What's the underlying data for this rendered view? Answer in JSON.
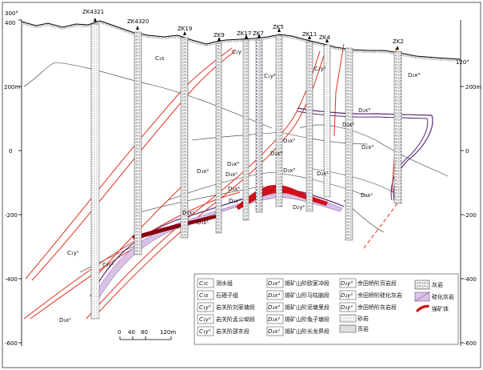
{
  "figure": {
    "left_angle": "300°",
    "right_angle": "120°",
    "elevation_ticks": [
      "400",
      "200m",
      "0",
      "-200",
      "-400",
      "-600"
    ],
    "scale_bar": {
      "ticks": [
        "0",
        "40",
        "80",
        "120m"
      ]
    }
  },
  "boreholes": [
    "ZK4321",
    "ZK4320",
    "ZK19",
    "ZK9",
    "ZK17",
    "ZK7",
    "ZK5",
    "ZK11",
    "ZK4",
    "ZK2"
  ],
  "section_labels": [
    {
      "text": "C₁s"
    },
    {
      "text": "C₁y"
    },
    {
      "text": "C₁y²"
    },
    {
      "text": "C₁y¹"
    },
    {
      "text": "D₃x⁴"
    },
    {
      "text": "D₃x³"
    },
    {
      "text": "D₃x²"
    },
    {
      "text": "D₃x¹"
    },
    {
      "text": "D₂x⁴"
    },
    {
      "text": "D₂x³"
    },
    {
      "text": "D₂x²"
    },
    {
      "text": "D₂x¹"
    },
    {
      "text": "D₃x⁴"
    },
    {
      "text": "D₃x³"
    },
    {
      "text": "D₃x²"
    },
    {
      "text": "D₃x¹"
    },
    {
      "text": "D₃x⁴"
    },
    {
      "text": "D₂x¹"
    },
    {
      "text": "C₁y¹"
    },
    {
      "text": "C₁y²"
    },
    {
      "text": "D₃x²"
    },
    {
      "text": "D₃x¹"
    },
    {
      "text": "D₂y²"
    },
    {
      "text": "D₃x¹"
    }
  ],
  "legend": {
    "col1": [
      {
        "sym": "C₁c",
        "label": "测水组"
      },
      {
        "sym": "C₁s",
        "label": "石磴子组"
      },
      {
        "sym": "C₁y³",
        "label": "岩关阶刘家塘段"
      },
      {
        "sym": "C₁y²",
        "label": "岩关阶孟公坳段"
      },
      {
        "sym": "C₁y¹",
        "label": "岩关阶邵东段"
      }
    ],
    "col2": [
      {
        "sym": "D₃x⁵",
        "label": "锡矿山阶欧家冲段"
      },
      {
        "sym": "D₃x⁴",
        "label": "锡矿山阶马牯脑段"
      },
      {
        "sym": "D₃x³",
        "label": "锡矿山阶泥塘里段"
      },
      {
        "sym": "D₃x²",
        "label": "锡矿山阶兔子塘段"
      },
      {
        "sym": "D₃x¹",
        "label": "锡矿山阶长龙界段"
      }
    ],
    "col3": [
      {
        "sym": "D₂y³",
        "label": "佘田桥阶页岩段"
      },
      {
        "sym": "D₂y²",
        "label": "佘田桥阶硅化灰岩"
      },
      {
        "sym": "D₂y¹",
        "label": "佘田桥阶灰岩段"
      },
      {
        "sym": "",
        "label": "砂岩"
      },
      {
        "sym": "",
        "label": "页岩"
      }
    ],
    "col4": [
      {
        "label": "灰岩"
      },
      {
        "label": "硅化灰岩"
      },
      {
        "label": "锑矿体"
      }
    ]
  },
  "colors": {
    "fault": "#e0301e",
    "orebody": "#d0101a",
    "silicified": "#d9c2e6",
    "contact": "#5a2a7a"
  }
}
